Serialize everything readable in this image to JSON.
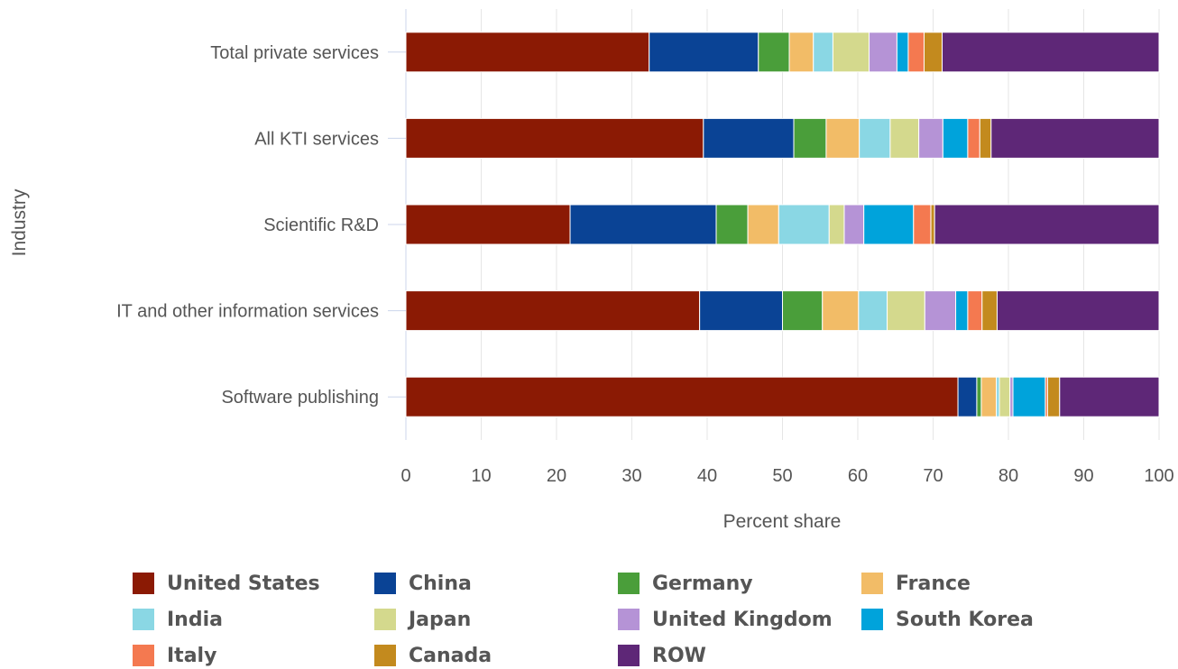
{
  "chart_data": {
    "type": "bar",
    "orientation": "horizontal",
    "stacked": true,
    "title": "",
    "xlabel": "Percent share",
    "ylabel": "Industry",
    "xlim": [
      0,
      100
    ],
    "xticks": [
      0,
      10,
      20,
      30,
      40,
      50,
      60,
      70,
      80,
      90,
      100
    ],
    "grid": true,
    "legend_position": "bottom",
    "categories": [
      "Total private services",
      "All KTI services",
      "Scientific R&D",
      "IT and other information services",
      "Software publishing"
    ],
    "series": [
      {
        "name": "United States",
        "color": "#8B1A04",
        "values": [
          32.3,
          39.5,
          21.8,
          39.0,
          73.3
        ]
      },
      {
        "name": "China",
        "color": "#0A4395",
        "values": [
          14.5,
          12.0,
          19.4,
          11.0,
          2.5
        ]
      },
      {
        "name": "Germany",
        "color": "#4A9E3A",
        "values": [
          4.1,
          4.3,
          4.2,
          5.3,
          0.6
        ]
      },
      {
        "name": "France",
        "color": "#F2BC67",
        "values": [
          3.2,
          4.4,
          4.1,
          4.8,
          2.0
        ]
      },
      {
        "name": "India",
        "color": "#8AD7E4",
        "values": [
          2.6,
          4.1,
          6.7,
          3.8,
          0.4
        ]
      },
      {
        "name": "Japan",
        "color": "#D4D98D",
        "values": [
          4.8,
          3.8,
          2.0,
          5.0,
          1.4
        ]
      },
      {
        "name": "United Kingdom",
        "color": "#B593D6",
        "values": [
          3.7,
          3.2,
          2.6,
          4.1,
          0.4
        ]
      },
      {
        "name": "South Korea",
        "color": "#00A3DB",
        "values": [
          1.5,
          3.3,
          6.6,
          1.6,
          4.3
        ]
      },
      {
        "name": "Italy",
        "color": "#F47950",
        "values": [
          2.1,
          1.6,
          2.3,
          1.9,
          0.3
        ]
      },
      {
        "name": "Canada",
        "color": "#C38A1E",
        "values": [
          2.4,
          1.5,
          0.5,
          2.0,
          1.6
        ]
      },
      {
        "name": "ROW",
        "color": "#5E2777",
        "values": [
          28.8,
          22.3,
          29.8,
          21.5,
          13.2
        ]
      }
    ]
  }
}
